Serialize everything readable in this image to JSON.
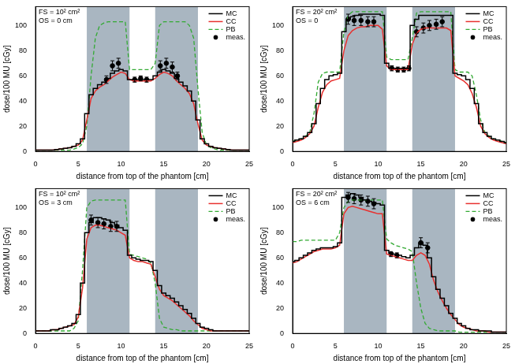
{
  "chart_data": [
    {
      "type": "line",
      "annotations": [
        "FS = 10² cm²",
        "OS = 0 cm"
      ],
      "x_label": "distance from top of the phantom [cm]",
      "y_label": "dose/100 MU [cGy]",
      "xlim": [
        0,
        25
      ],
      "xticks": [
        0,
        5,
        10,
        15,
        20,
        25
      ],
      "ylim": [
        0,
        115
      ],
      "yticks": [
        0,
        20,
        40,
        60,
        80,
        100
      ],
      "grid": false,
      "legend": "upper right",
      "shaded_regions": [
        [
          6,
          11
        ],
        [
          14,
          19
        ]
      ],
      "x": [
        0,
        0.5,
        1,
        1.5,
        2,
        2.5,
        3,
        3.5,
        4,
        4.5,
        5,
        5.5,
        6,
        6.5,
        7,
        7.5,
        8,
        8.5,
        9,
        9.5,
        10,
        10.5,
        11,
        11.5,
        12,
        12.5,
        13,
        13.5,
        14,
        14.5,
        15,
        15.5,
        16,
        16.5,
        17,
        17.5,
        18,
        18.5,
        19,
        19.5,
        20,
        20.5,
        21,
        21.5,
        22,
        22.5,
        23,
        23.5,
        24,
        24.5,
        25
      ],
      "series": [
        {
          "name": "MC",
          "color": "#000000",
          "line_style": "steps",
          "values": [
            1,
            1,
            1,
            1,
            1,
            1.5,
            2,
            2.5,
            3,
            4,
            6,
            10,
            30,
            45,
            50,
            53,
            55,
            58,
            62,
            64,
            65,
            64,
            57,
            57,
            57,
            57,
            57,
            57,
            60,
            63,
            65,
            64,
            62,
            58,
            55,
            52,
            48,
            40,
            25,
            10,
            6,
            4,
            3,
            2.5,
            2,
            1.5,
            1,
            1,
            1,
            1,
            1
          ]
        },
        {
          "name": "CC",
          "color": "#e8312f",
          "line_style": "solid",
          "values": [
            1,
            1,
            1,
            1,
            1,
            1.5,
            2,
            2.5,
            3,
            4,
            5,
            9,
            25,
            42,
            48,
            51,
            53,
            56,
            59,
            61,
            63,
            62,
            57,
            56,
            56,
            56,
            56,
            56,
            58,
            61,
            63,
            62,
            60,
            56,
            53,
            50,
            46,
            38,
            22,
            9,
            5,
            4,
            3,
            2.5,
            2,
            1.5,
            1,
            1,
            1,
            1,
            1
          ]
        },
        {
          "name": "PB",
          "color": "#33aa33",
          "line_style": "dashed",
          "values": [
            1,
            1,
            1,
            1,
            1,
            1,
            1,
            1,
            1,
            2,
            3,
            6,
            20,
            60,
            90,
            100,
            102,
            103,
            103,
            103,
            103,
            103,
            65,
            65,
            65,
            65,
            65,
            65,
            70,
            100,
            103,
            103,
            103,
            103,
            103,
            103,
            100,
            90,
            50,
            15,
            5,
            3,
            2,
            1,
            1,
            1,
            1,
            1,
            1,
            1,
            1
          ]
        },
        {
          "name": "meas.",
          "type": "scatter",
          "marker": "circle",
          "color": "#000000",
          "x": [
            8.3,
            9,
            9.7,
            11.6,
            12.3,
            13,
            14.6,
            15.3,
            16,
            16.6
          ],
          "values": [
            57,
            68,
            70,
            57,
            58,
            57,
            68,
            70,
            67,
            60
          ],
          "errors": [
            3,
            4,
            4,
            2,
            2,
            2,
            4,
            4,
            4,
            3
          ]
        }
      ]
    },
    {
      "type": "line",
      "annotations": [
        "FS = 20² cm²",
        "OS = 0"
      ],
      "x_label": "distance from top of the phantom [cm]",
      "y_label": "dose/100 MU [cGy]",
      "xlim": [
        0,
        25
      ],
      "xticks": [
        0,
        5,
        10,
        15,
        20,
        25
      ],
      "ylim": [
        0,
        115
      ],
      "yticks": [
        0,
        20,
        40,
        60,
        80,
        100
      ],
      "grid": false,
      "legend": "upper right",
      "shaded_regions": [
        [
          6,
          11
        ],
        [
          14,
          19
        ]
      ],
      "x": [
        0,
        0.5,
        1,
        1.5,
        2,
        2.5,
        3,
        3.5,
        4,
        4.5,
        5,
        5.5,
        6,
        6.5,
        7,
        7.5,
        8,
        8.5,
        9,
        9.5,
        10,
        10.5,
        11,
        11.5,
        12,
        12.5,
        13,
        13.5,
        14,
        14.5,
        15,
        15.5,
        16,
        16.5,
        17,
        17.5,
        18,
        18.5,
        19,
        19.5,
        20,
        20.5,
        21,
        21.5,
        22,
        22.5,
        23,
        23.5,
        24,
        24.5,
        25
      ],
      "series": [
        {
          "name": "MC",
          "color": "#000000",
          "line_style": "steps",
          "values": [
            8,
            9,
            10,
            12,
            15,
            22,
            38,
            50,
            57,
            60,
            61,
            62,
            95,
            105,
            107,
            108,
            109,
            109,
            109,
            109,
            109,
            108,
            70,
            66,
            66,
            66,
            66,
            66,
            100,
            105,
            108,
            108,
            108,
            108,
            108,
            108,
            108,
            108,
            62,
            61,
            60,
            57,
            50,
            38,
            22,
            15,
            12,
            10,
            9,
            8,
            7
          ]
        },
        {
          "name": "CC",
          "color": "#e8312f",
          "line_style": "solid",
          "values": [
            7,
            8,
            9,
            11,
            14,
            20,
            35,
            47,
            53,
            56,
            57,
            58,
            80,
            92,
            96,
            98,
            99,
            99,
            100,
            100,
            100,
            97,
            68,
            65,
            65,
            65,
            65,
            65,
            85,
            94,
            97,
            98,
            98,
            98,
            98,
            98,
            98,
            96,
            60,
            58,
            56,
            53,
            46,
            35,
            20,
            14,
            11,
            9,
            8,
            7,
            6
          ]
        },
        {
          "name": "PB",
          "color": "#33aa33",
          "line_style": "dashed",
          "values": [
            8,
            9,
            10,
            12,
            15,
            30,
            55,
            62,
            63,
            63,
            63,
            63,
            95,
            108,
            111,
            111,
            111,
            111,
            111,
            111,
            111,
            111,
            75,
            73,
            73,
            73,
            73,
            73,
            90,
            110,
            111,
            111,
            111,
            111,
            111,
            111,
            111,
            111,
            65,
            63,
            63,
            63,
            60,
            45,
            25,
            15,
            12,
            10,
            9,
            8,
            7
          ]
        },
        {
          "name": "meas.",
          "type": "scatter",
          "marker": "circle",
          "color": "#000000",
          "x": [
            6.5,
            7.2,
            8,
            8.8,
            9.5,
            11.6,
            12.3,
            13,
            13.6,
            14.5,
            15.3,
            16,
            16.8,
            17.5
          ],
          "values": [
            105,
            104,
            104,
            103,
            103,
            66,
            65,
            65,
            66,
            95,
            98,
            100,
            101,
            103
          ],
          "errors": [
            4,
            4,
            4,
            4,
            4,
            2,
            2,
            2,
            2,
            4,
            4,
            4,
            4,
            4
          ]
        }
      ]
    },
    {
      "type": "line",
      "annotations": [
        "FS = 10² cm²",
        "OS = 3 cm"
      ],
      "x_label": "distance from top of the phantom [cm]",
      "y_label": "dose/100 MU [cGy]",
      "xlim": [
        0,
        25
      ],
      "xticks": [
        0,
        5,
        10,
        15,
        20,
        25
      ],
      "ylim": [
        0,
        115
      ],
      "yticks": [
        0,
        20,
        40,
        60,
        80,
        100
      ],
      "grid": false,
      "legend": "upper right",
      "shaded_regions": [
        [
          6,
          11
        ],
        [
          14,
          19
        ]
      ],
      "x": [
        0,
        0.5,
        1,
        1.5,
        2,
        2.5,
        3,
        3.5,
        4,
        4.5,
        5,
        5.5,
        6,
        6.5,
        7,
        7.5,
        8,
        8.5,
        9,
        9.5,
        10,
        10.5,
        11,
        11.5,
        12,
        12.5,
        13,
        13.5,
        14,
        14.5,
        15,
        15.5,
        16,
        16.5,
        17,
        17.5,
        18,
        18.5,
        19,
        19.5,
        20,
        20.5,
        21,
        21.5,
        22,
        22.5,
        23,
        23.5,
        24,
        24.5,
        25
      ],
      "series": [
        {
          "name": "MC",
          "color": "#000000",
          "line_style": "steps",
          "values": [
            2,
            2,
            2,
            2,
            3,
            3,
            4,
            5,
            6,
            8,
            15,
            40,
            80,
            88,
            92,
            92,
            91,
            90,
            88,
            86,
            84,
            82,
            62,
            60,
            59,
            58,
            58,
            57,
            50,
            38,
            32,
            30,
            28,
            25,
            22,
            19,
            16,
            12,
            8,
            5,
            4,
            3,
            2,
            2,
            2,
            2,
            2,
            2,
            2,
            2,
            2
          ]
        },
        {
          "name": "CC",
          "color": "#e8312f",
          "line_style": "solid",
          "values": [
            2,
            2,
            2,
            2,
            3,
            3,
            4,
            5,
            6,
            7,
            13,
            36,
            75,
            84,
            86,
            86,
            85,
            84,
            83,
            82,
            80,
            78,
            60,
            58,
            57,
            57,
            56,
            55,
            45,
            35,
            30,
            28,
            26,
            23,
            20,
            17,
            14,
            10,
            7,
            4,
            3,
            2,
            2,
            2,
            2,
            2,
            2,
            2,
            2,
            2,
            2
          ]
        },
        {
          "name": "PB",
          "color": "#33aa33",
          "line_style": "dashed",
          "values": [
            2,
            2,
            2,
            2,
            2,
            2,
            2,
            2,
            2,
            4,
            10,
            50,
            100,
            105,
            106,
            106,
            106,
            106,
            106,
            106,
            106,
            106,
            63,
            62,
            61,
            60,
            59,
            56,
            40,
            12,
            5,
            4,
            3,
            3,
            2,
            2,
            2,
            2,
            2,
            2,
            2,
            2,
            2,
            2,
            2,
            2,
            2,
            2,
            2,
            2,
            2
          ]
        },
        {
          "name": "meas.",
          "type": "scatter",
          "marker": "circle",
          "color": "#000000",
          "x": [
            6.5,
            7.3,
            8,
            8.8,
            9.5
          ],
          "values": [
            90,
            88,
            87,
            85,
            85
          ],
          "errors": [
            4,
            4,
            4,
            4,
            4
          ]
        }
      ]
    },
    {
      "type": "line",
      "annotations": [
        "FS = 20² cm²",
        "OS = 6 cm"
      ],
      "x_label": "distance from top of the phantom [cm]",
      "y_label": "dose/100 MU [cGy]",
      "xlim": [
        0,
        25
      ],
      "xticks": [
        0,
        5,
        10,
        15,
        20,
        25
      ],
      "ylim": [
        0,
        115
      ],
      "yticks": [
        0,
        20,
        40,
        60,
        80,
        100
      ],
      "grid": false,
      "legend": "upper right",
      "shaded_regions": [
        [
          6,
          11
        ],
        [
          14,
          19
        ]
      ],
      "x": [
        0,
        0.5,
        1,
        1.5,
        2,
        2.5,
        3,
        3.5,
        4,
        4.5,
        5,
        5.5,
        6,
        6.5,
        7,
        7.5,
        8,
        8.5,
        9,
        9.5,
        10,
        10.5,
        11,
        11.5,
        12,
        12.5,
        13,
        13.5,
        14,
        14.5,
        15,
        15.5,
        16,
        16.5,
        17,
        17.5,
        18,
        18.5,
        19,
        19.5,
        20,
        20.5,
        21,
        21.5,
        22,
        22.5,
        23,
        23.5,
        24,
        24.5,
        25
      ],
      "series": [
        {
          "name": "MC",
          "color": "#000000",
          "line_style": "steps",
          "values": [
            57,
            58,
            60,
            62,
            64,
            66,
            67,
            68,
            68,
            68,
            69,
            72,
            108,
            110,
            111,
            110,
            108,
            106,
            105,
            104,
            103,
            102,
            66,
            64,
            63,
            62,
            61,
            60,
            62,
            68,
            72,
            70,
            60,
            45,
            35,
            28,
            22,
            16,
            12,
            8,
            6,
            4,
            3,
            3,
            2,
            2,
            2,
            1,
            1,
            1,
            1
          ]
        },
        {
          "name": "CC",
          "color": "#e8312f",
          "line_style": "solid",
          "values": [
            56,
            57,
            59,
            61,
            63,
            65,
            66,
            67,
            67,
            67,
            68,
            70,
            95,
            100,
            101,
            100,
            99,
            98,
            97,
            96,
            95,
            95,
            63,
            62,
            61,
            60,
            59,
            58,
            58,
            62,
            64,
            62,
            55,
            42,
            33,
            26,
            20,
            15,
            11,
            7,
            5,
            4,
            3,
            2,
            2,
            2,
            1,
            1,
            1,
            1,
            1
          ]
        },
        {
          "name": "PB",
          "color": "#33aa33",
          "line_style": "dashed",
          "values": [
            73,
            73,
            74,
            74,
            74,
            74,
            74,
            74,
            74,
            74,
            74,
            80,
            100,
            105,
            106,
            106,
            106,
            106,
            106,
            106,
            106,
            106,
            75,
            72,
            70,
            69,
            68,
            67,
            65,
            40,
            20,
            8,
            4,
            3,
            2,
            2,
            2,
            2,
            2,
            1,
            1,
            1,
            1,
            1,
            1,
            1,
            1,
            1,
            1,
            1,
            1
          ]
        },
        {
          "name": "meas.",
          "type": "scatter",
          "marker": "circle",
          "color": "#000000",
          "x": [
            6.5,
            7.2,
            8,
            8.8,
            9.5,
            11.5,
            12.2,
            15,
            15.8
          ],
          "values": [
            108,
            107,
            106,
            105,
            103,
            63,
            62,
            72,
            68
          ],
          "errors": [
            4,
            4,
            4,
            4,
            4,
            2,
            2,
            4,
            4
          ]
        }
      ]
    }
  ]
}
